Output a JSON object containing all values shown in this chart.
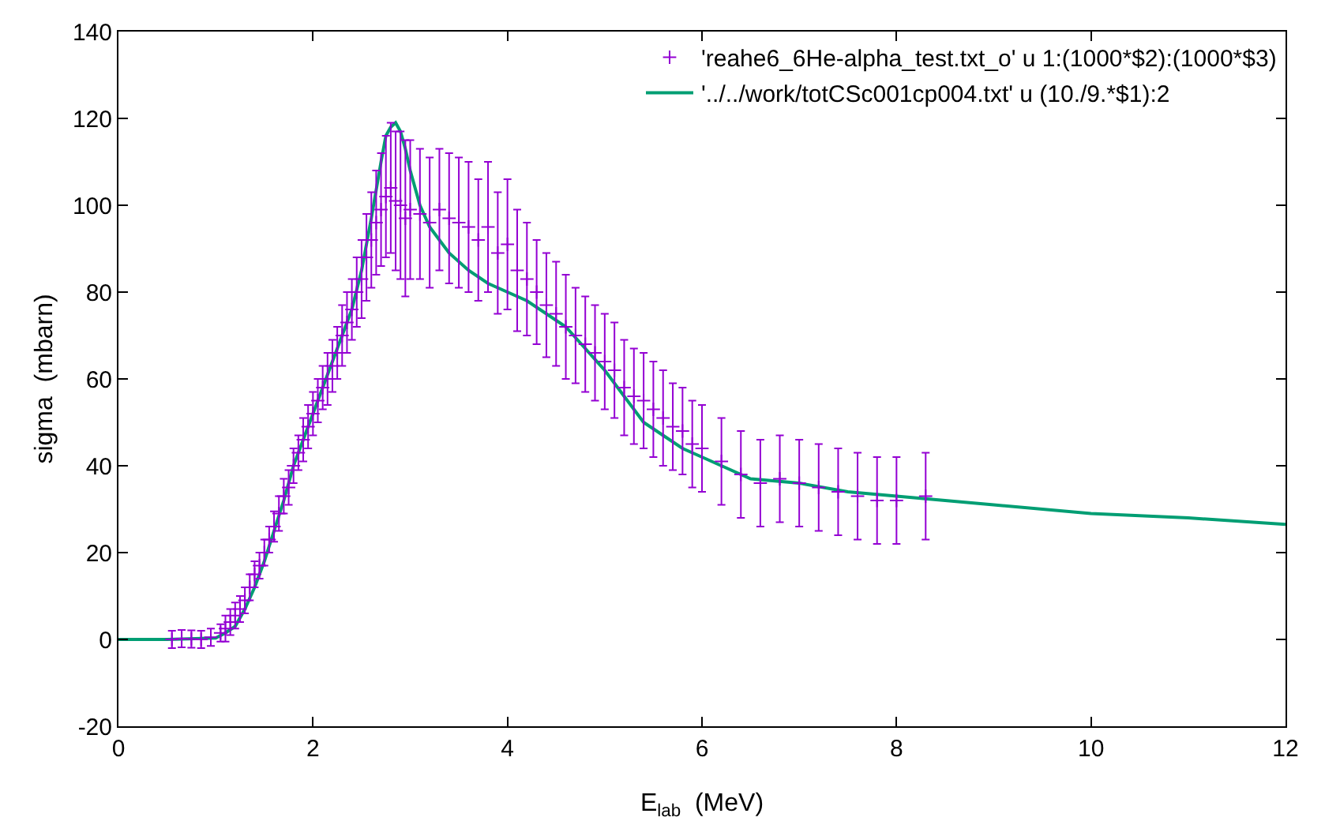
{
  "chart_data": {
    "type": "scatter",
    "xlabel": "E$_{lab}$  (MeV)",
    "ylabel": "sigma  (mbarn)",
    "xlim": [
      0,
      12
    ],
    "xticks": [
      0,
      2,
      4,
      6,
      8,
      10,
      12
    ],
    "ylim": [
      -20,
      140
    ],
    "yticks": [
      -20,
      0,
      20,
      40,
      60,
      80,
      100,
      120,
      140
    ],
    "grid": false,
    "legend": "top right",
    "series": [
      {
        "name": "'reahe6_6He-alpha_test.txt_o' u 1:(1000*$2):(1000*$3)",
        "marker": "cross",
        "color": "#9400d3",
        "x": [
          0.55,
          0.65,
          0.75,
          0.85,
          0.95,
          1.05,
          1.1,
          1.15,
          1.2,
          1.25,
          1.3,
          1.35,
          1.4,
          1.45,
          1.5,
          1.55,
          1.6,
          1.65,
          1.7,
          1.75,
          1.8,
          1.85,
          1.9,
          1.95,
          2.0,
          2.05,
          2.1,
          2.15,
          2.2,
          2.25,
          2.3,
          2.35,
          2.4,
          2.45,
          2.5,
          2.55,
          2.6,
          2.65,
          2.7,
          2.75,
          2.8,
          2.85,
          2.9,
          2.95,
          3.0,
          3.1,
          3.2,
          3.3,
          3.4,
          3.5,
          3.6,
          3.7,
          3.8,
          3.9,
          4.0,
          4.1,
          4.2,
          4.3,
          4.4,
          4.5,
          4.6,
          4.7,
          4.8,
          4.9,
          5.0,
          5.1,
          5.2,
          5.3,
          5.4,
          5.5,
          5.6,
          5.7,
          5.8,
          5.9,
          6.0,
          6.2,
          6.4,
          6.6,
          6.8,
          7.0,
          7.2,
          7.4,
          7.6,
          7.8,
          8.0,
          8.3
        ],
        "values": [
          0,
          0.2,
          0.1,
          0,
          0.5,
          1.5,
          2.5,
          4,
          5.5,
          7,
          9,
          12,
          15,
          17,
          20,
          23,
          26,
          29,
          33,
          35,
          40,
          43,
          46,
          49,
          52,
          55,
          58,
          60,
          63,
          66,
          70,
          73,
          76,
          80,
          83,
          88,
          92,
          96,
          99,
          102,
          104,
          101,
          100,
          97,
          99,
          98,
          96,
          99,
          97,
          96,
          95,
          92,
          95,
          89,
          91,
          85,
          83,
          80,
          77,
          75,
          72,
          70,
          68,
          66,
          64,
          62,
          58,
          56,
          55,
          53,
          51,
          49,
          48,
          45,
          44,
          41,
          38,
          36,
          37,
          36,
          35,
          34,
          33,
          32,
          32,
          33
        ],
        "errors": [
          2,
          2,
          2,
          2,
          2,
          2,
          3,
          3,
          3,
          3,
          3,
          3,
          3,
          3,
          3,
          3,
          3.5,
          4,
          4,
          4,
          4,
          4,
          5,
          5,
          5,
          5,
          5,
          6,
          6,
          6,
          7,
          7,
          7,
          8,
          9,
          10,
          11,
          12,
          13,
          14,
          15,
          16,
          17,
          18,
          16,
          15,
          15,
          14,
          15,
          15,
          15,
          14,
          15,
          14,
          15,
          14,
          13,
          12,
          12,
          12,
          12,
          11,
          11,
          11,
          11,
          11,
          11,
          11,
          11,
          11,
          11,
          10,
          10,
          10,
          10,
          10,
          10,
          10,
          10,
          10,
          10,
          10,
          10,
          10,
          10,
          10
        ]
      },
      {
        "name": "'../../work/totCSc001cp004.txt' u (10./9.*$1):2",
        "type": "line",
        "marker": "none",
        "line_style": "solid",
        "color": "#009e73",
        "x": [
          0,
          0.5,
          1.0,
          1.1,
          1.2,
          1.3,
          1.4,
          1.5,
          1.6,
          1.7,
          1.8,
          1.9,
          2.0,
          2.1,
          2.2,
          2.3,
          2.4,
          2.5,
          2.6,
          2.7,
          2.75,
          2.8,
          2.85,
          2.9,
          2.95,
          3.0,
          3.1,
          3.2,
          3.3,
          3.4,
          3.6,
          3.8,
          4.0,
          4.2,
          4.4,
          4.6,
          4.8,
          5.0,
          5.2,
          5.4,
          5.6,
          5.8,
          6.0,
          6.2,
          6.5,
          7.0,
          7.5,
          8.0,
          9.0,
          10.0,
          11.0,
          12.0
        ],
        "values": [
          0,
          0,
          0.3,
          1.5,
          3,
          7,
          12,
          18,
          25,
          32,
          40,
          46,
          52,
          58,
          64,
          70,
          76,
          85,
          97,
          110,
          116,
          118,
          119,
          117,
          113,
          108,
          100,
          95,
          92,
          89,
          85,
          82,
          80,
          78,
          75,
          72,
          67,
          62,
          56,
          50,
          47,
          44,
          42,
          40,
          37,
          36,
          34,
          33,
          31,
          29,
          28,
          26.5
        ]
      }
    ]
  }
}
